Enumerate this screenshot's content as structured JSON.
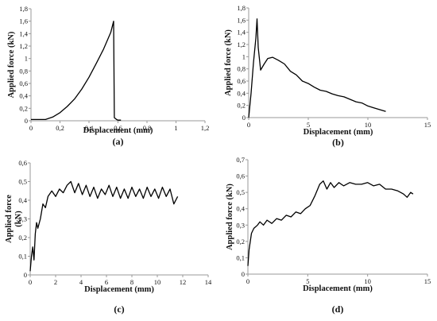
{
  "chart_data": [
    {
      "type": "line",
      "caption": "(a)",
      "xlabel": "Displacement (mm)",
      "ylabel": "Applied force (kN)",
      "xlim": [
        0,
        1.2
      ],
      "ylim": [
        0,
        1.8
      ],
      "xticks": [
        "0",
        "0,2",
        "0,4",
        "0,6",
        "0,8",
        "1",
        "1,2"
      ],
      "yticks": [
        "0",
        "0,2",
        "0,4",
        "0,6",
        "0,8",
        "1",
        "1,2",
        "1,4",
        "1,6",
        "1,8"
      ],
      "grid": false,
      "series": [
        {
          "x": [
            0,
            0.1,
            0.15,
            0.2,
            0.25,
            0.3,
            0.35,
            0.4,
            0.45,
            0.5,
            0.55,
            0.57,
            0.575,
            0.59,
            0.6,
            0.62
          ],
          "y": [
            0.02,
            0.02,
            0.06,
            0.13,
            0.23,
            0.35,
            0.51,
            0.7,
            0.92,
            1.15,
            1.42,
            1.6,
            0.05,
            0.02,
            0.01,
            0.01
          ]
        }
      ]
    },
    {
      "type": "line",
      "caption": "(b)",
      "xlabel": "Displacement  (mm)",
      "ylabel": "Applied force (kN)",
      "xlim": [
        0,
        15
      ],
      "ylim": [
        0,
        1.8
      ],
      "xticks": [
        "0",
        "5",
        "10",
        "15"
      ],
      "yticks": [
        "0",
        "0,2",
        "0,4",
        "0,6",
        "0,8",
        "1",
        "1,2",
        "1,4",
        "1,6",
        "1,8"
      ],
      "grid": false,
      "series": [
        {
          "x": [
            0,
            0.2,
            0.4,
            0.6,
            0.7,
            0.8,
            1.0,
            1.3,
            1.6,
            2.0,
            2.5,
            3.0,
            3.5,
            4.0,
            4.5,
            5.0,
            5.5,
            6.0,
            6.5,
            7.0,
            7.5,
            8.0,
            8.5,
            9.0,
            9.5,
            10.0,
            10.5,
            11.0,
            11.5
          ],
          "y": [
            0.0,
            0.4,
            0.9,
            1.3,
            1.62,
            1.15,
            0.78,
            0.88,
            0.97,
            0.99,
            0.94,
            0.88,
            0.76,
            0.7,
            0.6,
            0.56,
            0.5,
            0.45,
            0.43,
            0.39,
            0.36,
            0.34,
            0.3,
            0.26,
            0.24,
            0.19,
            0.16,
            0.13,
            0.1
          ]
        }
      ]
    },
    {
      "type": "line",
      "caption": "(c)",
      "xlabel": "Displacement (mm)",
      "ylabel": "Applied force\n(kN)",
      "xlim": [
        0,
        14
      ],
      "ylim": [
        0,
        0.6
      ],
      "xticks": [
        "0",
        "2",
        "4",
        "6",
        "8",
        "10",
        "12",
        "14"
      ],
      "yticks": [
        "0",
        "0,1",
        "0,2",
        "0,3",
        "0,4",
        "0,5",
        "0,6"
      ],
      "grid": false,
      "series": [
        {
          "x": [
            0,
            0.1,
            0.2,
            0.3,
            0.4,
            0.5,
            0.6,
            0.8,
            1.0,
            1.2,
            1.4,
            1.7,
            2.0,
            2.3,
            2.6,
            2.9,
            3.2,
            3.5,
            3.8,
            4.1,
            4.4,
            4.7,
            5.0,
            5.3,
            5.6,
            5.9,
            6.2,
            6.5,
            6.8,
            7.1,
            7.4,
            7.7,
            8.0,
            8.3,
            8.6,
            8.9,
            9.2,
            9.5,
            9.8,
            10.1,
            10.4,
            10.7,
            11.0,
            11.3,
            11.6
          ],
          "y": [
            0.02,
            0.1,
            0.15,
            0.08,
            0.22,
            0.28,
            0.25,
            0.3,
            0.38,
            0.36,
            0.42,
            0.45,
            0.42,
            0.46,
            0.44,
            0.48,
            0.5,
            0.44,
            0.49,
            0.43,
            0.48,
            0.42,
            0.47,
            0.41,
            0.46,
            0.43,
            0.48,
            0.42,
            0.47,
            0.41,
            0.46,
            0.41,
            0.47,
            0.42,
            0.46,
            0.41,
            0.47,
            0.42,
            0.46,
            0.41,
            0.47,
            0.42,
            0.46,
            0.38,
            0.42
          ]
        }
      ]
    },
    {
      "type": "line",
      "caption": "(d)",
      "xlabel": "Displacement (mm)",
      "ylabel": "Applied force (kN)",
      "xlim": [
        0,
        15
      ],
      "ylim": [
        0,
        0.7
      ],
      "xticks": [
        "0",
        "5",
        "10",
        "15"
      ],
      "yticks": [
        "0",
        "0,1",
        "0,2",
        "0,3",
        "0,4",
        "0,5",
        "0,6",
        "0,7"
      ],
      "grid": false,
      "series": [
        {
          "x": [
            0,
            0.1,
            0.2,
            0.3,
            0.5,
            0.8,
            1.0,
            1.3,
            1.6,
            2.0,
            2.4,
            2.8,
            3.2,
            3.6,
            4.0,
            4.4,
            4.8,
            5.2,
            5.6,
            6.0,
            6.3,
            6.6,
            6.9,
            7.2,
            7.6,
            8.0,
            8.5,
            9.0,
            9.5,
            10.0,
            10.5,
            11.0,
            11.5,
            12.0,
            12.5,
            13.0,
            13.3,
            13.6,
            13.8
          ],
          "y": [
            0.05,
            0.15,
            0.2,
            0.25,
            0.28,
            0.3,
            0.32,
            0.3,
            0.33,
            0.31,
            0.34,
            0.33,
            0.36,
            0.35,
            0.38,
            0.37,
            0.4,
            0.42,
            0.48,
            0.55,
            0.57,
            0.52,
            0.56,
            0.53,
            0.56,
            0.54,
            0.56,
            0.55,
            0.55,
            0.56,
            0.54,
            0.55,
            0.52,
            0.52,
            0.51,
            0.49,
            0.47,
            0.5,
            0.49
          ]
        }
      ]
    }
  ]
}
